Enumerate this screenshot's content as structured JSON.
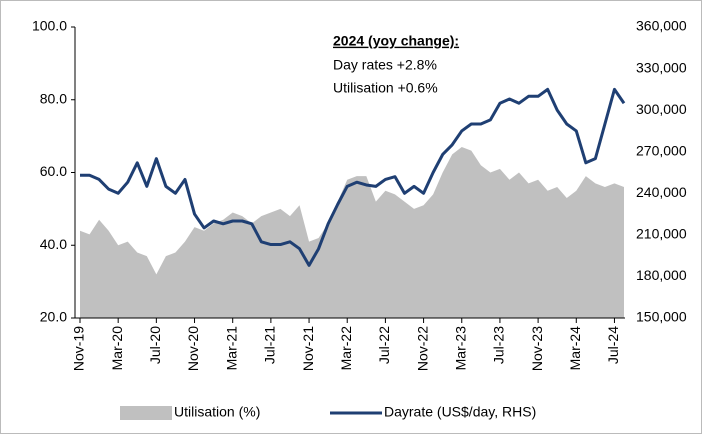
{
  "chart_data": {
    "type": "area-line",
    "annotation": {
      "title": "2024 (yoy change):",
      "lines": [
        "Day rates +2.8%",
        "Utilisation +0.6%"
      ]
    },
    "categories": [
      "Nov-19",
      null,
      null,
      null,
      "Mar-20",
      null,
      null,
      null,
      "Jul-20",
      null,
      null,
      null,
      "Nov-20",
      null,
      null,
      null,
      "Mar-21",
      null,
      null,
      null,
      "Jul-21",
      null,
      null,
      null,
      "Nov-21",
      null,
      null,
      null,
      "Mar-22",
      null,
      null,
      null,
      "Jul-22",
      null,
      null,
      null,
      "Nov-22",
      null,
      null,
      null,
      "Mar-23",
      null,
      null,
      null,
      "Jul-23",
      null,
      null,
      null,
      "Nov-23",
      null,
      null,
      null,
      "Mar-24",
      null,
      null,
      null,
      "Jul-24",
      null
    ],
    "series": [
      {
        "name": "Utilisation (%)",
        "kind": "area",
        "axis": "y",
        "color": "#c0c0c0",
        "values": [
          44,
          43,
          47,
          44,
          40,
          41,
          38,
          37,
          32,
          37,
          38,
          41,
          45,
          44,
          46,
          47,
          49,
          48,
          46,
          48,
          49,
          50,
          48,
          51,
          41,
          42,
          46,
          52,
          58,
          59,
          59,
          52,
          55,
          54,
          52,
          50,
          51,
          54,
          60,
          65,
          67,
          66,
          62,
          60,
          61,
          58,
          60,
          57,
          58,
          55,
          56,
          53,
          55,
          59,
          57,
          56,
          57,
          56
        ]
      },
      {
        "name": "Dayrate (US$/day, RHS)",
        "kind": "line",
        "axis": "y2",
        "color": "#1f3f73",
        "values": [
          253000,
          253000,
          250000,
          243000,
          240000,
          248000,
          262000,
          245000,
          265000,
          245000,
          240000,
          250000,
          225000,
          215000,
          220000,
          218000,
          220000,
          220000,
          218000,
          205000,
          203000,
          203000,
          205000,
          200000,
          188000,
          200000,
          218000,
          232000,
          245000,
          248000,
          246000,
          245000,
          250000,
          252000,
          240000,
          245000,
          240000,
          255000,
          268000,
          275000,
          285000,
          290000,
          290000,
          293000,
          305000,
          308000,
          305000,
          310000,
          310000,
          315000,
          300000,
          290000,
          285000,
          262000,
          265000,
          290000,
          315000,
          305000
        ]
      }
    ],
    "ylim": [
      20,
      100
    ],
    "yticks": [
      {
        "value": 20,
        "label": "20.0"
      },
      {
        "value": 40,
        "label": "40.0"
      },
      {
        "value": 60,
        "label": "60.0"
      },
      {
        "value": 80,
        "label": "80.0"
      },
      {
        "value": 100,
        "label": "100.0"
      }
    ],
    "y2lim": [
      150000,
      360000
    ],
    "y2ticks": [
      {
        "value": 150000,
        "label": "150,000"
      },
      {
        "value": 180000,
        "label": "180,000"
      },
      {
        "value": 210000,
        "label": "210,000"
      },
      {
        "value": 240000,
        "label": "240,000"
      },
      {
        "value": 270000,
        "label": "270,000"
      },
      {
        "value": 300000,
        "label": "300,000"
      },
      {
        "value": 330000,
        "label": "330,000"
      },
      {
        "value": 360000,
        "label": "360,000"
      }
    ]
  }
}
